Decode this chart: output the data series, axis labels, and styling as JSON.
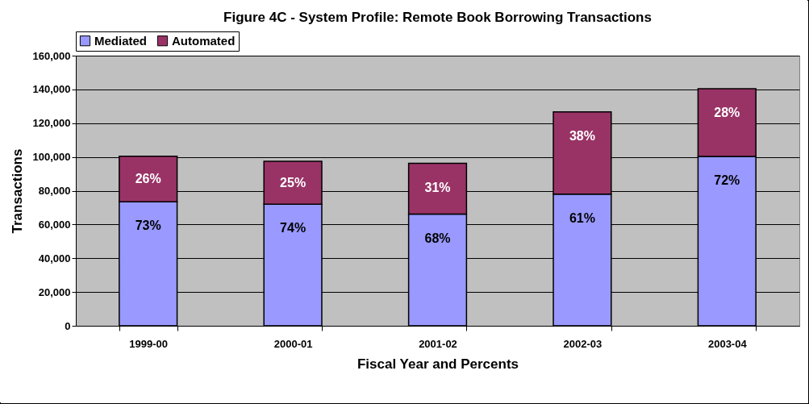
{
  "chart_data": {
    "type": "bar",
    "title": "Figure 4C - System Profile: Remote Book Borrowing Transactions",
    "xlabel": "Fiscal Year and Percents",
    "ylabel": "Transactions",
    "categories": [
      "1999-00",
      "2000-01",
      "2001-02",
      "2002-03",
      "2003-04"
    ],
    "stacked": true,
    "series": [
      {
        "name": "Mediated",
        "color": "#9999ff",
        "values": [
          73400,
          72000,
          66100,
          78000,
          100300
        ]
      },
      {
        "name": "Automated",
        "color": "#993366",
        "values": [
          27000,
          25400,
          30100,
          48700,
          40100
        ]
      }
    ],
    "annotations": [
      {
        "text": "73%",
        "x": "1999-00",
        "y": 73400
      },
      {
        "text": "74%",
        "x": "2000-01",
        "y": 72000
      },
      {
        "text": "68%",
        "x": "2001-02",
        "y": 66100
      },
      {
        "text": "61%",
        "x": "2002-03",
        "y": 78000
      },
      {
        "text": "72%",
        "x": "2003-04",
        "y": 100300
      },
      {
        "text": "26%",
        "x": "1999-00",
        "y": 100400
      },
      {
        "text": "25%",
        "x": "2000-01",
        "y": 97400
      },
      {
        "text": "31%",
        "x": "2001-02",
        "y": 96200
      },
      {
        "text": "38%",
        "x": "2002-03",
        "y": 126700
      },
      {
        "text": "28%",
        "x": "2003-04",
        "y": 140400
      }
    ],
    "ylim": [
      0,
      160000
    ],
    "yticks": [
      0,
      {
        "value": 20000,
        "label": "20,000"
      },
      {
        "value": 40000,
        "label": "40,000"
      },
      {
        "value": 60000,
        "label": "60,000"
      },
      {
        "value": 80000,
        "label": "80,000"
      },
      {
        "value": 100000,
        "label": "100,000"
      },
      {
        "value": 120000,
        "label": "120,000"
      },
      {
        "value": 140000,
        "label": "140,000"
      },
      {
        "value": 160000,
        "label": "160,000"
      }
    ],
    "grid": "y",
    "legend": "top"
  }
}
